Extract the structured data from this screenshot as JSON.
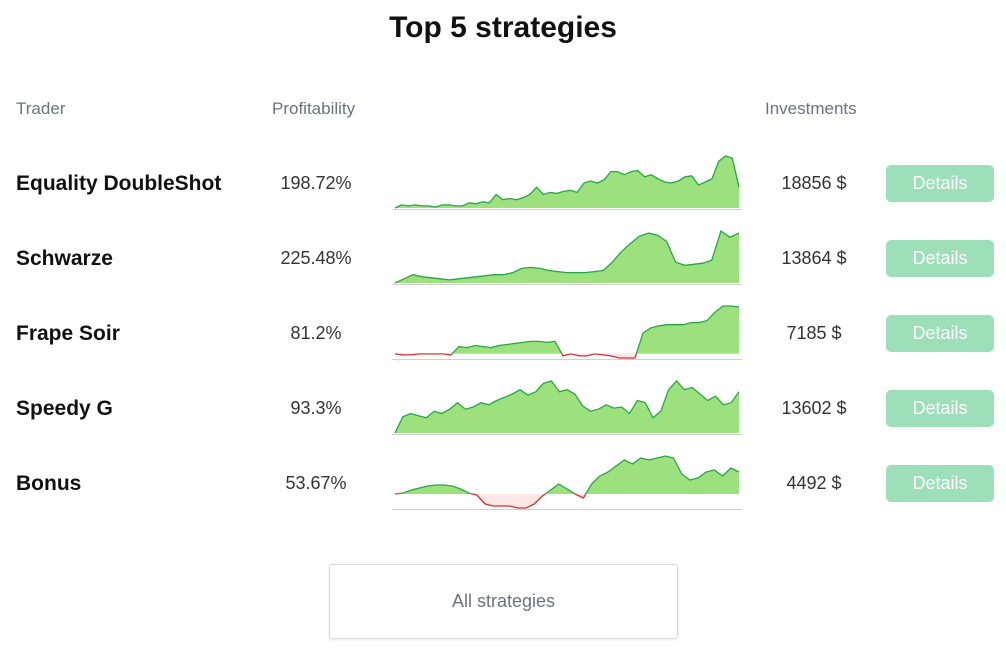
{
  "title": "Top 5 strategies",
  "headers": {
    "trader": "Trader",
    "profitability": "Profitability",
    "investments": "Investments"
  },
  "rows": [
    {
      "name": "Equality DoubleShot",
      "profit": "198.72%",
      "invest": "18856 $",
      "details": "Details",
      "spark": [
        0,
        3,
        2,
        3,
        2,
        2,
        1,
        3,
        3,
        2,
        2,
        5,
        4,
        6,
        5,
        13,
        8,
        9,
        8,
        10,
        13,
        20,
        13,
        15,
        14,
        16,
        17,
        15,
        24,
        26,
        24,
        27,
        35,
        35,
        32,
        35,
        36,
        30,
        32,
        28,
        25,
        24,
        26,
        30,
        31,
        22,
        25,
        28,
        45,
        50,
        48,
        20
      ]
    },
    {
      "name": "Schwarze",
      "profit": "225.48%",
      "invest": "13864 $",
      "details": "Details",
      "spark": [
        0,
        4,
        8,
        6,
        5,
        4,
        3,
        4,
        5,
        6,
        7,
        8,
        8,
        10,
        14,
        15,
        14,
        12,
        11,
        10,
        10,
        10,
        11,
        12,
        20,
        30,
        38,
        45,
        48,
        46,
        40,
        20,
        17,
        18,
        19,
        22,
        50,
        44,
        48
      ]
    },
    {
      "name": "Frape Soir",
      "profit": "81.2%",
      "invest": "7185 $",
      "details": "Details",
      "spark": [
        0,
        -1,
        -1,
        0,
        0,
        0,
        0,
        -1,
        7,
        6,
        8,
        7,
        6,
        8,
        9,
        10,
        11,
        12,
        12,
        11,
        12,
        -2,
        0,
        -2,
        -2,
        0,
        -1,
        -2,
        -4,
        -4,
        -4,
        20,
        25,
        27,
        28,
        28,
        28,
        30,
        30,
        32,
        40,
        46,
        46,
        45
      ]
    },
    {
      "name": "Speedy G",
      "profit": "93.3%",
      "invest": "13602 $",
      "details": "Details",
      "spark": [
        0,
        15,
        18,
        16,
        14,
        20,
        18,
        22,
        28,
        22,
        24,
        28,
        26,
        30,
        33,
        36,
        40,
        35,
        38,
        46,
        48,
        38,
        40,
        36,
        25,
        20,
        22,
        26,
        23,
        24,
        18,
        30,
        28,
        14,
        20,
        40,
        48,
        40,
        42,
        36,
        30,
        34,
        26,
        28,
        38
      ]
    },
    {
      "name": "Bonus",
      "profit": "53.67%",
      "invest": "4492 $",
      "details": "Details",
      "spark": [
        0,
        1,
        4,
        6,
        8,
        9,
        9,
        8,
        5,
        1,
        -1,
        -10,
        -12,
        -12,
        -12,
        -14,
        -14,
        -10,
        -2,
        4,
        10,
        5,
        0,
        -4,
        10,
        18,
        22,
        28,
        34,
        30,
        36,
        34,
        36,
        38,
        36,
        20,
        14,
        16,
        22,
        24,
        18,
        26,
        22
      ]
    }
  ],
  "all_button": "All strategies",
  "colors": {
    "positive_fill": "#9de07e",
    "positive_line": "#28a745",
    "negative_fill": "#fde8e8",
    "negative_line": "#d32f2f",
    "details_bg": "#9ddfb9",
    "baseline": "#d0d0d0"
  }
}
